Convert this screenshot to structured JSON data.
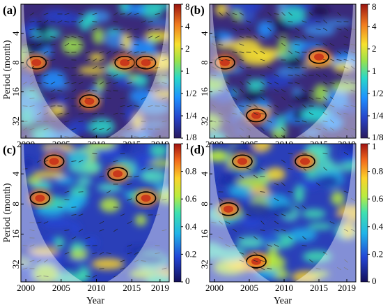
{
  "figure": {
    "ylabel": "Period (month)",
    "xlabel": "Year"
  },
  "chart_data": [
    {
      "type": "heatmap",
      "panel": "(a)",
      "x_ticks": [
        "2000",
        "2005",
        "2010",
        "2015",
        "2019"
      ],
      "y_ticks": [
        "4",
        "8",
        "16",
        "32"
      ],
      "y_scale": "log2",
      "colorbar_ticks": [
        "8",
        "4",
        "2",
        "1",
        "1/2",
        "1/4",
        "1/8"
      ],
      "colorbar_scale": "log2",
      "colorbar_range": [
        0.125,
        8
      ],
      "hotspots": [
        {
          "year": 2001.5,
          "period": 8,
          "level": "high"
        },
        {
          "year": 2009,
          "period": 20,
          "level": "high"
        },
        {
          "year": 2014,
          "period": 8,
          "level": "high"
        },
        {
          "year": 2017,
          "period": 8,
          "level": "high"
        }
      ],
      "grid": false
    },
    {
      "type": "heatmap",
      "panel": "(b)",
      "x_ticks": [
        "2000",
        "2005",
        "2010",
        "2015",
        "2019"
      ],
      "y_ticks": [
        "4",
        "8",
        "16",
        "32"
      ],
      "y_scale": "log2",
      "colorbar_ticks": [
        "8",
        "4",
        "2",
        "1",
        "1/2",
        "1/4",
        "1/8"
      ],
      "colorbar_scale": "log2",
      "colorbar_range": [
        0.125,
        8
      ],
      "hotspots": [
        {
          "year": 2001.5,
          "period": 8,
          "level": "high"
        },
        {
          "year": 2006,
          "period": 28,
          "level": "high"
        },
        {
          "year": 2015,
          "period": 7,
          "level": "high"
        }
      ],
      "grid": false
    },
    {
      "type": "heatmap",
      "panel": "(c)",
      "x_ticks": [
        "2000",
        "2005",
        "2010",
        "2015",
        "2019"
      ],
      "y_ticks": [
        "4",
        "8",
        "16",
        "32"
      ],
      "y_scale": "log2",
      "colorbar_ticks": [
        "1",
        "0.8",
        "0.6",
        "0.4",
        "0.2",
        "0"
      ],
      "colorbar_range": [
        0,
        1
      ],
      "hotspots": [
        {
          "year": 2004,
          "period": 3,
          "level": "high"
        },
        {
          "year": 2002,
          "period": 7,
          "level": "high"
        },
        {
          "year": 2013,
          "period": 4,
          "level": "high"
        },
        {
          "year": 2017,
          "period": 7,
          "level": "high"
        }
      ],
      "grid": false
    },
    {
      "type": "heatmap",
      "panel": "(d)",
      "x_ticks": [
        "2000",
        "2005",
        "2010",
        "2015",
        "2019"
      ],
      "y_ticks": [
        "4",
        "8",
        "16",
        "32"
      ],
      "y_scale": "log2",
      "colorbar_ticks": [
        "1",
        "0.8",
        "0.6",
        "0.4",
        "0.2",
        "0"
      ],
      "colorbar_range": [
        0,
        1
      ],
      "hotspots": [
        {
          "year": 2004,
          "period": 3,
          "level": "high"
        },
        {
          "year": 2002,
          "period": 9,
          "level": "high"
        },
        {
          "year": 2013,
          "period": 3,
          "level": "high"
        },
        {
          "year": 2006,
          "period": 30,
          "level": "high"
        }
      ],
      "grid": false
    }
  ]
}
